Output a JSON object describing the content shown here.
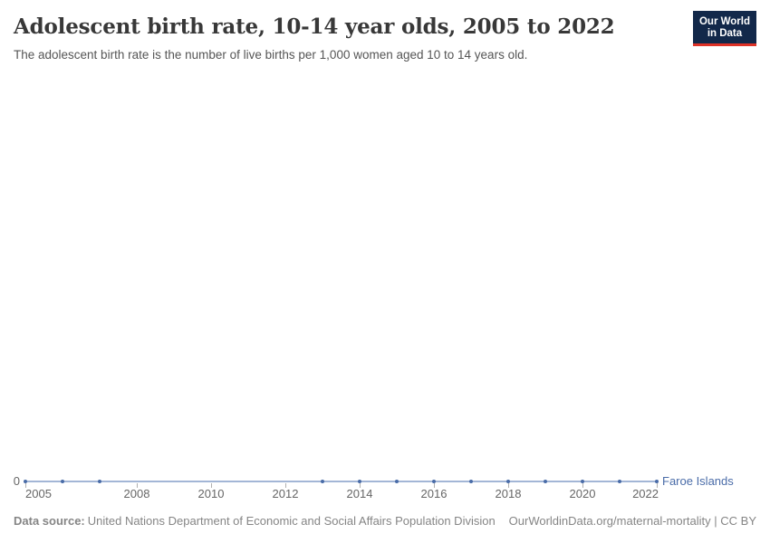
{
  "header": {
    "title": "Adolescent birth rate, 10-14 year olds, 2005 to 2022",
    "subtitle": "The adolescent birth rate is the number of live births per 1,000 women aged 10 to 14 years old.",
    "logo": {
      "line1": "Our World",
      "line2": "in Data"
    }
  },
  "chart_data": {
    "type": "line",
    "title": "Adolescent birth rate, 10-14 year olds, 2005 to 2022",
    "xlabel": "",
    "ylabel": "",
    "x_range": [
      2005,
      2022
    ],
    "x_ticks": [
      2005,
      2008,
      2010,
      2012,
      2014,
      2016,
      2018,
      2020,
      2022
    ],
    "y_axis": {
      "zero_label": "0",
      "min": 0,
      "visible_labels": [
        "0"
      ]
    },
    "grid": false,
    "legend_position": "right-end-of-line",
    "series": [
      {
        "name": "Faroe Islands",
        "color": "#4A6CA8",
        "line_color": "#A3B6D6",
        "points": [
          {
            "year": 2005,
            "value": 0
          },
          {
            "year": 2006,
            "value": 0
          },
          {
            "year": 2007,
            "value": 0
          },
          {
            "year": 2013,
            "value": 0
          },
          {
            "year": 2014,
            "value": 0
          },
          {
            "year": 2015,
            "value": 0
          },
          {
            "year": 2016,
            "value": 0
          },
          {
            "year": 2017,
            "value": 0
          },
          {
            "year": 2018,
            "value": 0
          },
          {
            "year": 2019,
            "value": 0
          },
          {
            "year": 2020,
            "value": 0
          },
          {
            "year": 2021,
            "value": 0
          },
          {
            "year": 2022,
            "value": 0
          }
        ]
      }
    ]
  },
  "footer": {
    "datasource_label": "Data source:",
    "datasource_value": "United Nations Department of Economic and Social Affairs Population Division",
    "link": "OurWorldinData.org/maternal-mortality",
    "separator": " | ",
    "license": "CC BY"
  },
  "colors": {
    "title_text": "#383838",
    "subtitle_text": "#555555",
    "axis_text": "#666666",
    "tick_mark": "#b0b0b0",
    "footer_text": "#858585",
    "series_blue": "#4A6CA8",
    "series_line_blue": "#A3B6D6",
    "logo_navy": "#12284A",
    "logo_red": "#DE3227"
  }
}
